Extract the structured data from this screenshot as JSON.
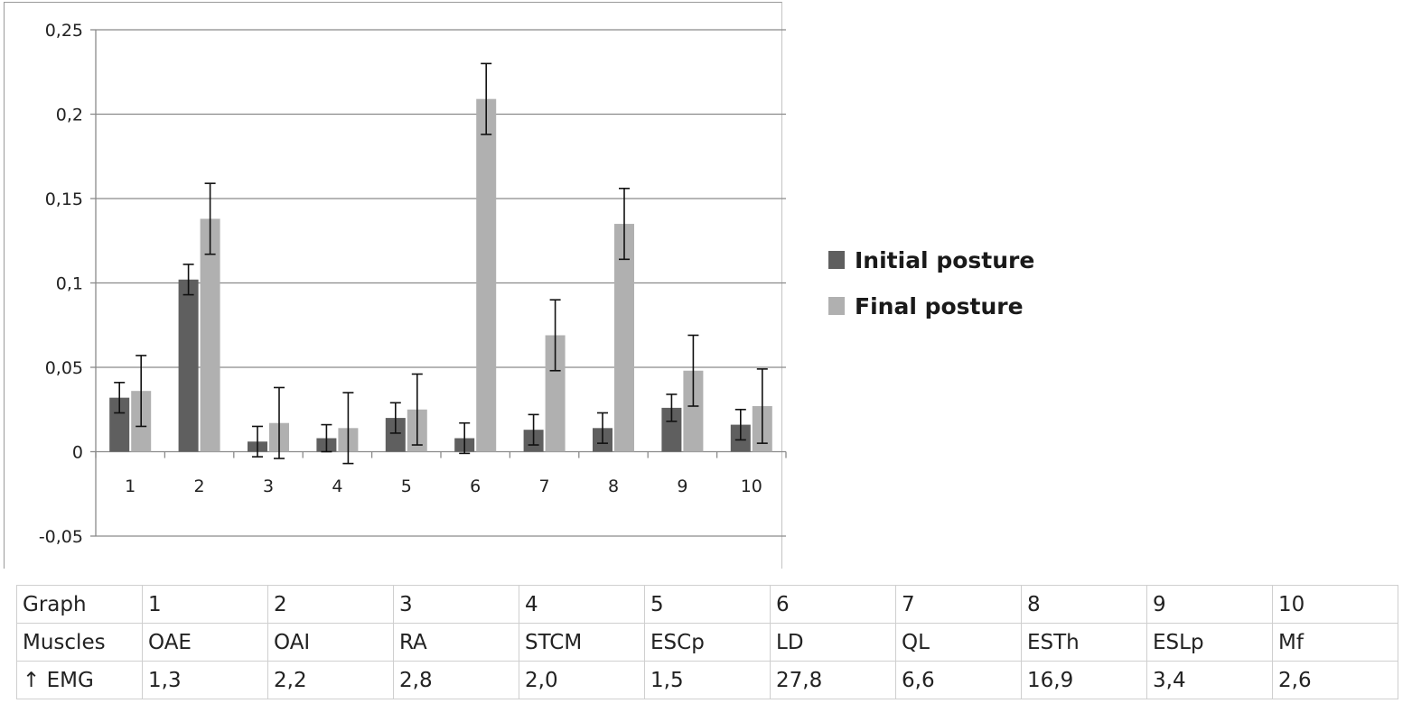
{
  "chart_data": {
    "type": "bar",
    "title": "",
    "xlabel": "",
    "ylabel": "",
    "categories": [
      "1",
      "2",
      "3",
      "4",
      "5",
      "6",
      "7",
      "8",
      "9",
      "10"
    ],
    "ylim": [
      -0.05,
      0.25
    ],
    "yticks": [
      -0.05,
      0,
      0.05,
      0.1,
      0.15,
      0.2,
      0.25
    ],
    "ytick_labels": [
      "-0,05",
      "0",
      "0,05",
      "0,1",
      "0,15",
      "0,2",
      "0,25"
    ],
    "grid": true,
    "legend_position": "right",
    "series": [
      {
        "name": "Initial posture",
        "color": "#5f5f5f",
        "values": [
          0.032,
          0.102,
          0.006,
          0.008,
          0.02,
          0.008,
          0.013,
          0.014,
          0.026,
          0.016
        ],
        "error": [
          0.009,
          0.009,
          0.009,
          0.008,
          0.009,
          0.009,
          0.009,
          0.009,
          0.008,
          0.009
        ]
      },
      {
        "name": "Final posture",
        "color": "#b0b0b0",
        "values": [
          0.036,
          0.138,
          0.017,
          0.014,
          0.025,
          0.209,
          0.069,
          0.135,
          0.048,
          0.027
        ],
        "error": [
          0.021,
          0.021,
          0.021,
          0.021,
          0.021,
          0.021,
          0.021,
          0.021,
          0.021,
          0.022
        ]
      }
    ]
  },
  "table": {
    "rows": [
      {
        "label": "Graph",
        "cells": [
          "1",
          "2",
          "3",
          "4",
          "5",
          "6",
          "7",
          "8",
          "9",
          "10"
        ]
      },
      {
        "label": "Muscles",
        "cells": [
          "OAE",
          "OAI",
          "RA",
          "STCM",
          "ESCp",
          "LD",
          "QL",
          "ESTh",
          "ESLp",
          "Mf"
        ]
      },
      {
        "label": "↑ EMG",
        "cells": [
          "1,3",
          "2,2",
          "2,8",
          "2,0",
          "1,5",
          "27,8",
          "6,6",
          "16,9",
          "3,4",
          "2,6"
        ]
      }
    ]
  }
}
